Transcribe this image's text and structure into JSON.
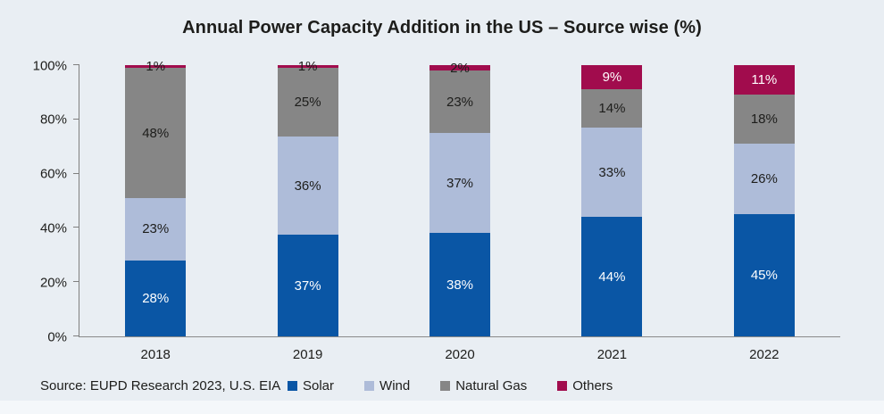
{
  "chart_data": {
    "type": "bar",
    "stacked": true,
    "title": "Annual Power Capacity Addition in the US – Source wise (%)",
    "categories": [
      "2018",
      "2019",
      "2020",
      "2021",
      "2022"
    ],
    "series": [
      {
        "name": "Solar",
        "color": "#0a56a5",
        "label_color": "#ffffff",
        "values": [
          28,
          37,
          38,
          44,
          45
        ],
        "labels": [
          "28%",
          "37%",
          "38%",
          "44%",
          "45%"
        ]
      },
      {
        "name": "Wind",
        "color": "#aebcd9",
        "label_color": "#1d1d1b",
        "values": [
          23,
          36,
          37,
          33,
          26
        ],
        "labels": [
          "23%",
          "36%",
          "37%",
          "33%",
          "26%"
        ]
      },
      {
        "name": "Natural Gas",
        "color": "#868686",
        "label_color": "#1d1d1b",
        "values": [
          48,
          25,
          23,
          14,
          18
        ],
        "labels": [
          "48%",
          "25%",
          "23%",
          "14%",
          "18%"
        ]
      },
      {
        "name": "Others",
        "color": "#a10c4d",
        "label_color": "#1d1d1b",
        "label_colors": [
          "#1d1d1b",
          "#1d1d1b",
          "#1d1d1b",
          "#ffffff",
          "#ffffff"
        ],
        "values": [
          1,
          1,
          2,
          9,
          11
        ],
        "labels": [
          "1%",
          "1%",
          "2%",
          "9%",
          "11%"
        ]
      }
    ],
    "y_axis": {
      "ticks": [
        {
          "label": "0%",
          "value": 0
        },
        {
          "label": "20%",
          "value": 20
        },
        {
          "label": "40%",
          "value": 40
        },
        {
          "label": "60%",
          "value": 60
        },
        {
          "label": "80%",
          "value": 80
        },
        {
          "label": "100%",
          "value": 100
        }
      ],
      "range": [
        0,
        100
      ]
    },
    "grid": false,
    "legend_position": "bottom",
    "legend": [
      "Solar",
      "Wind",
      "Natural Gas",
      "Others"
    ]
  },
  "source_note": "Source: EUPD Research 2023, U.S. EIA",
  "colors": {
    "background": "#e9eef3",
    "text": "#1d1d1b",
    "axis": "#7f7f7f",
    "solar": "#0a56a5",
    "wind": "#aebcd9",
    "natural_gas": "#868686",
    "others": "#a10c4d"
  }
}
